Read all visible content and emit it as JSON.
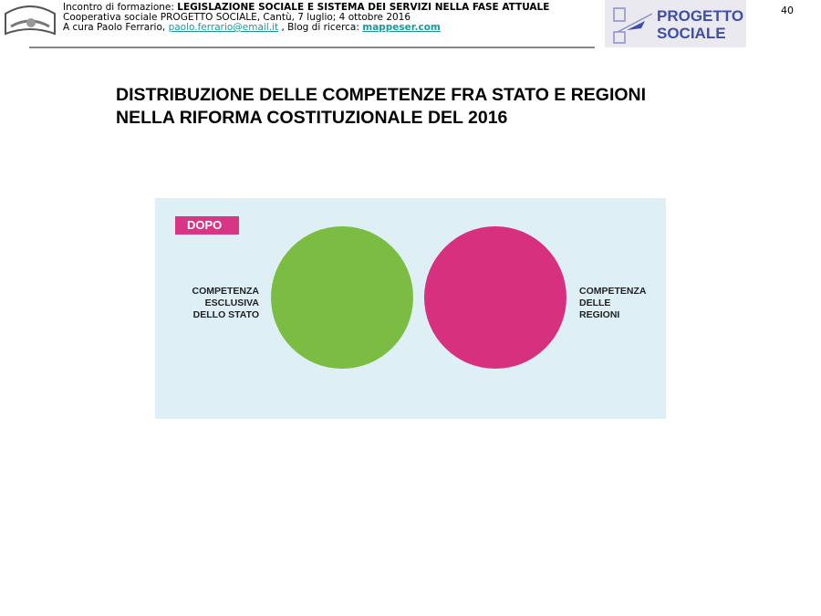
{
  "header": {
    "line1_prefix": "Incontro di formazione: ",
    "line1_bold": "LEGISLAZIONE SOCIALE E SISTEMA DEI SERVIZI NELLA FASE ATTUALE",
    "line2": "Cooperativa sociale PROGETTO SOCIALE, Cantù, 7 luglio; 4 ottobre 2016",
    "line3_prefix": "A cura Paolo Ferrario, ",
    "email": "paolo.ferrario@email.it",
    "line3_mid": " , Blog di ricerca: ",
    "blog": "mappeser.com",
    "logo_text_1": "PROGETTO",
    "logo_text_2": "SOCIALE",
    "page_number": "40"
  },
  "slide": {
    "title_line1": "DISTRIBUZIONE DELLE COMPETENZE FRA STATO E REGIONI",
    "title_line2": "NELLA RIFORMA COSTITUZIONALE DEL 2016"
  },
  "figure": {
    "tag": "DOPO",
    "left_label": [
      "COMPETENZA",
      "ESCLUSIVA",
      "DELLO STATO"
    ],
    "right_label": [
      "COMPETENZA",
      "DELLE",
      "REGIONI"
    ],
    "colors": {
      "state": "#7bbd42",
      "regions": "#d6307e",
      "tag": "#d83584",
      "background": "#def0f6"
    }
  }
}
